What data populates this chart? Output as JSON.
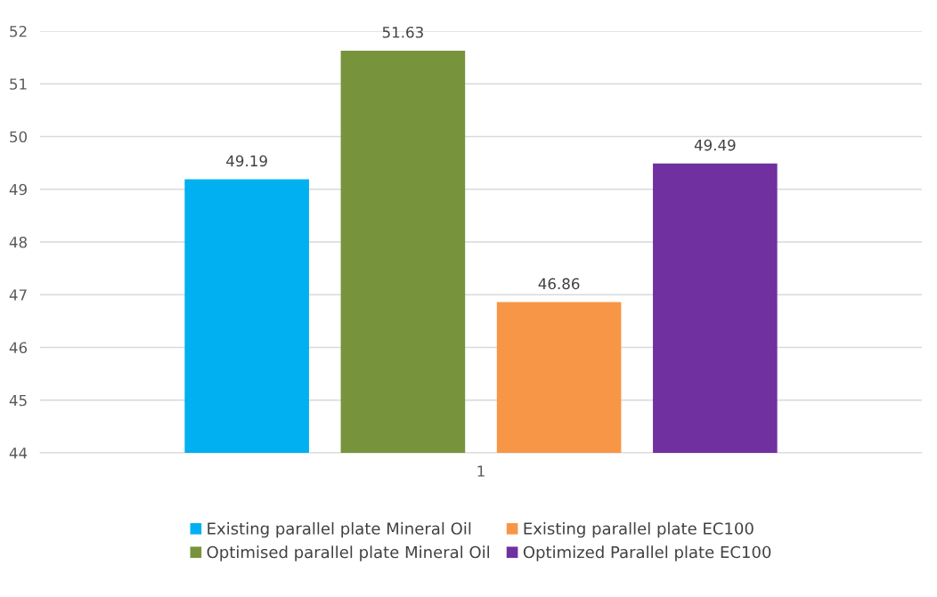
{
  "chart_data": {
    "type": "bar",
    "categories": [
      "1"
    ],
    "series": [
      {
        "name": "Existing parallel plate Mineral Oil",
        "color": "#00b0f0",
        "values": [
          49.19
        ]
      },
      {
        "name": "Optimised parallel plate Mineral Oil",
        "color": "#77933c",
        "values": [
          51.63
        ]
      },
      {
        "name": "Existing parallel plate EC100",
        "color": "#f79646",
        "values": [
          46.86
        ]
      },
      {
        "name": "Optimized Parallel plate EC100",
        "color": "#7030a0",
        "values": [
          49.49
        ]
      }
    ],
    "ylim": [
      44,
      52
    ],
    "yticks": [
      44,
      45,
      46,
      47,
      48,
      49,
      50,
      51,
      52
    ],
    "grid": "y",
    "legend": "bottom",
    "data_labels": true
  }
}
